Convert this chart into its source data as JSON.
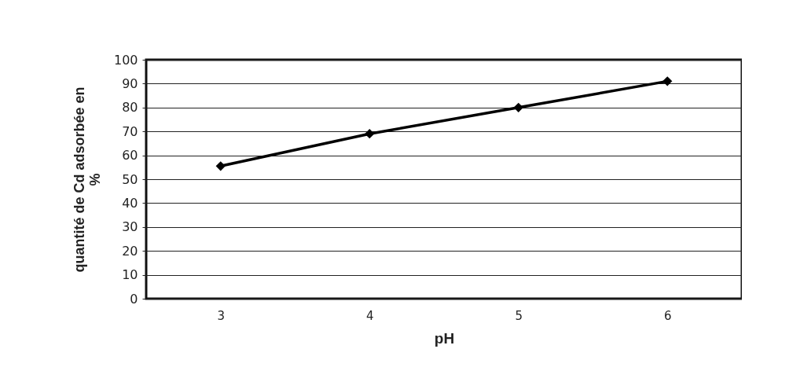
{
  "chart_data": {
    "type": "line",
    "xlabel": "pH",
    "ylabel": "quantité de Cd adsorbée en %",
    "categories": [
      "3",
      "4",
      "5",
      "6"
    ],
    "series": [
      {
        "color": "#000000",
        "values": [
          55.5,
          69,
          80,
          91
        ]
      }
    ],
    "ylim": [
      0,
      100
    ],
    "yticks": [
      0,
      10,
      20,
      30,
      40,
      50,
      60,
      70,
      80,
      90,
      100
    ],
    "grid": "y",
    "marker": "diamond",
    "line_style": "solid"
  }
}
